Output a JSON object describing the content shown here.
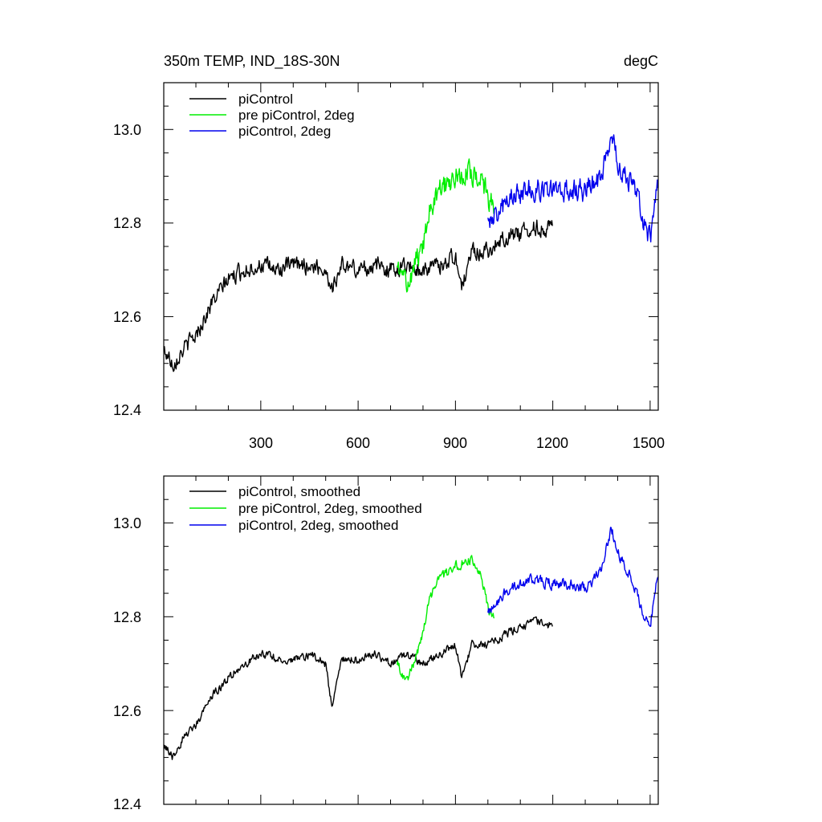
{
  "chart_data": [
    {
      "type": "line",
      "title": "350m TEMP, IND_18S-30N",
      "units": "degC",
      "xlim": [
        1,
        1525
      ],
      "ylim": [
        12.4,
        13.1
      ],
      "xticks": [
        300,
        600,
        900,
        1200,
        1500
      ],
      "xtick_labels": [
        "300",
        "600",
        "900",
        "1200",
        "1500"
      ],
      "yticks": [
        12.4,
        12.6,
        12.8,
        13.0
      ],
      "ytick_labels": [
        "12.4",
        "12.6",
        "12.8",
        "13.0"
      ],
      "legend_position": "top-left",
      "series": [
        {
          "name": "piControl",
          "color": "#000000",
          "noise": 0.028,
          "points": [
            [
              1,
              12.53
            ],
            [
              30,
              12.5
            ],
            [
              60,
              12.53
            ],
            [
              100,
              12.56
            ],
            [
              150,
              12.63
            ],
            [
              200,
              12.68
            ],
            [
              250,
              12.7
            ],
            [
              300,
              12.71
            ],
            [
              350,
              12.7
            ],
            [
              400,
              12.71
            ],
            [
              450,
              12.71
            ],
            [
              500,
              12.7
            ],
            [
              520,
              12.66
            ],
            [
              550,
              12.71
            ],
            [
              600,
              12.7
            ],
            [
              650,
              12.71
            ],
            [
              700,
              12.7
            ],
            [
              750,
              12.71
            ],
            [
              800,
              12.7
            ],
            [
              850,
              12.71
            ],
            [
              900,
              12.73
            ],
            [
              920,
              12.66
            ],
            [
              950,
              12.74
            ],
            [
              1000,
              12.74
            ],
            [
              1050,
              12.77
            ],
            [
              1100,
              12.78
            ],
            [
              1150,
              12.79
            ],
            [
              1200,
              12.79
            ]
          ]
        },
        {
          "name": "pre piControl, 2deg",
          "color": "#00ee00",
          "noise": 0.04,
          "points": [
            [
              720,
              12.7
            ],
            [
              750,
              12.67
            ],
            [
              780,
              12.72
            ],
            [
              800,
              12.75
            ],
            [
              820,
              12.83
            ],
            [
              850,
              12.87
            ],
            [
              900,
              12.9
            ],
            [
              950,
              12.91
            ],
            [
              980,
              12.9
            ],
            [
              1000,
              12.85
            ],
            [
              1020,
              12.84
            ]
          ]
        },
        {
          "name": "piControl, 2deg",
          "color": "#0000ee",
          "noise": 0.04,
          "points": [
            [
              1000,
              12.8
            ],
            [
              1050,
              12.84
            ],
            [
              1100,
              12.86
            ],
            [
              1150,
              12.88
            ],
            [
              1200,
              12.87
            ],
            [
              1250,
              12.87
            ],
            [
              1300,
              12.87
            ],
            [
              1350,
              12.9
            ],
            [
              1380,
              12.98
            ],
            [
              1400,
              12.93
            ],
            [
              1450,
              12.88
            ],
            [
              1480,
              12.8
            ],
            [
              1500,
              12.77
            ],
            [
              1525,
              12.88
            ]
          ]
        }
      ]
    },
    {
      "type": "line",
      "xlim": [
        1,
        1525
      ],
      "ylim": [
        12.4,
        13.1
      ],
      "xticks": [
        300,
        600,
        900,
        1200,
        1500
      ],
      "yticks": [
        12.4,
        12.6,
        12.8,
        13.0
      ],
      "ytick_labels": [
        "12.4",
        "12.6",
        "12.8",
        "13.0"
      ],
      "legend_position": "top-left",
      "series": [
        {
          "name": "piControl, smoothed",
          "color": "#000000",
          "noise": 0.014,
          "points": [
            [
              1,
              12.53
            ],
            [
              30,
              12.5
            ],
            [
              60,
              12.54
            ],
            [
              100,
              12.57
            ],
            [
              150,
              12.63
            ],
            [
              200,
              12.67
            ],
            [
              250,
              12.7
            ],
            [
              300,
              12.72
            ],
            [
              350,
              12.71
            ],
            [
              400,
              12.71
            ],
            [
              450,
              12.72
            ],
            [
              500,
              12.7
            ],
            [
              520,
              12.6
            ],
            [
              550,
              12.71
            ],
            [
              600,
              12.71
            ],
            [
              650,
              12.72
            ],
            [
              700,
              12.7
            ],
            [
              750,
              12.72
            ],
            [
              800,
              12.7
            ],
            [
              850,
              12.72
            ],
            [
              900,
              12.74
            ],
            [
              920,
              12.67
            ],
            [
              950,
              12.74
            ],
            [
              1000,
              12.74
            ],
            [
              1050,
              12.76
            ],
            [
              1100,
              12.78
            ],
            [
              1150,
              12.79
            ],
            [
              1200,
              12.78
            ]
          ]
        },
        {
          "name": "pre piControl, 2deg, smoothed",
          "color": "#00ee00",
          "noise": 0.018,
          "points": [
            [
              720,
              12.7
            ],
            [
              750,
              12.66
            ],
            [
              780,
              12.72
            ],
            [
              800,
              12.76
            ],
            [
              820,
              12.84
            ],
            [
              850,
              12.88
            ],
            [
              900,
              12.91
            ],
            [
              950,
              12.92
            ],
            [
              980,
              12.88
            ],
            [
              1000,
              12.82
            ],
            [
              1020,
              12.8
            ]
          ]
        },
        {
          "name": "piControl, 2deg, smoothed",
          "color": "#0000ee",
          "noise": 0.018,
          "points": [
            [
              1000,
              12.81
            ],
            [
              1050,
              12.85
            ],
            [
              1100,
              12.87
            ],
            [
              1150,
              12.88
            ],
            [
              1200,
              12.87
            ],
            [
              1250,
              12.87
            ],
            [
              1300,
              12.86
            ],
            [
              1350,
              12.9
            ],
            [
              1380,
              12.99
            ],
            [
              1400,
              12.94
            ],
            [
              1450,
              12.87
            ],
            [
              1480,
              12.8
            ],
            [
              1500,
              12.78
            ],
            [
              1525,
              12.9
            ]
          ]
        }
      ]
    }
  ]
}
